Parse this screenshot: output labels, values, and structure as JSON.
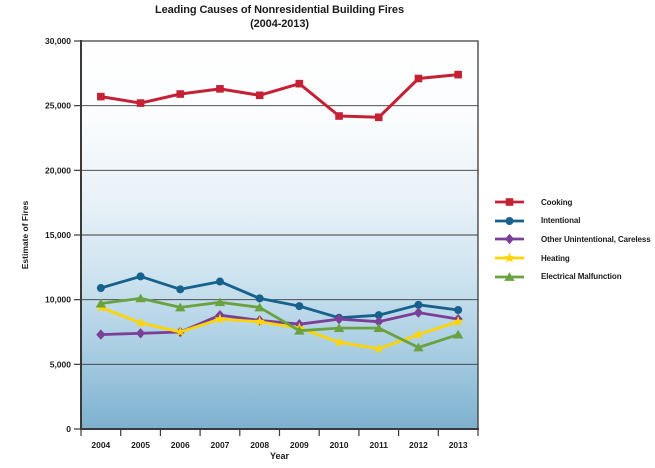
{
  "chart_data": {
    "type": "line",
    "title": "Leading Causes of Nonresidential Building Fires",
    "subtitle": "(2004-2013)",
    "xlabel": "Year",
    "ylabel": "Estimate of Fires",
    "ylim": [
      0,
      30000
    ],
    "y_tick_step": 5000,
    "y_tick_labels": [
      "0",
      "5,000",
      "10,000",
      "15,000",
      "20,000",
      "25,000",
      "30,000"
    ],
    "grid": true,
    "legend_position": "right",
    "plot_background_gradient": [
      "#FFFFFF",
      "#FAFCFD",
      "#E9F2F8",
      "#CFE4F0",
      "#A8CDE2",
      "#7DB1CF"
    ],
    "axis_color": "#3a3a3a",
    "categories": [
      "2004",
      "2005",
      "2006",
      "2007",
      "2008",
      "2009",
      "2010",
      "2011",
      "2012",
      "2013"
    ],
    "series": [
      {
        "name": "Cooking",
        "color": "#C52135",
        "marker": "square",
        "values": [
          25700,
          25200,
          25900,
          26300,
          25800,
          26700,
          24200,
          24100,
          27100,
          27400
        ]
      },
      {
        "name": "Intentional",
        "color": "#17618D",
        "marker": "circle",
        "values": [
          10900,
          11800,
          10800,
          11400,
          10100,
          9500,
          8600,
          8800,
          9600,
          9200
        ]
      },
      {
        "name": "Other Unintentional, Careless",
        "color": "#7B3F98",
        "marker": "diamond",
        "values": [
          7300,
          7400,
          7500,
          8800,
          8400,
          8100,
          8500,
          8300,
          9000,
          8500
        ]
      },
      {
        "name": "Heating",
        "color": "#FFD400",
        "marker": "star",
        "values": [
          9400,
          8200,
          7500,
          8500,
          8300,
          7800,
          6700,
          6200,
          7300,
          8300
        ]
      },
      {
        "name": "Electrical Malfunction",
        "color": "#69A23E",
        "marker": "triangle",
        "values": [
          9700,
          10100,
          9400,
          9800,
          9400,
          7600,
          7800,
          7800,
          6300,
          7300
        ]
      }
    ]
  }
}
